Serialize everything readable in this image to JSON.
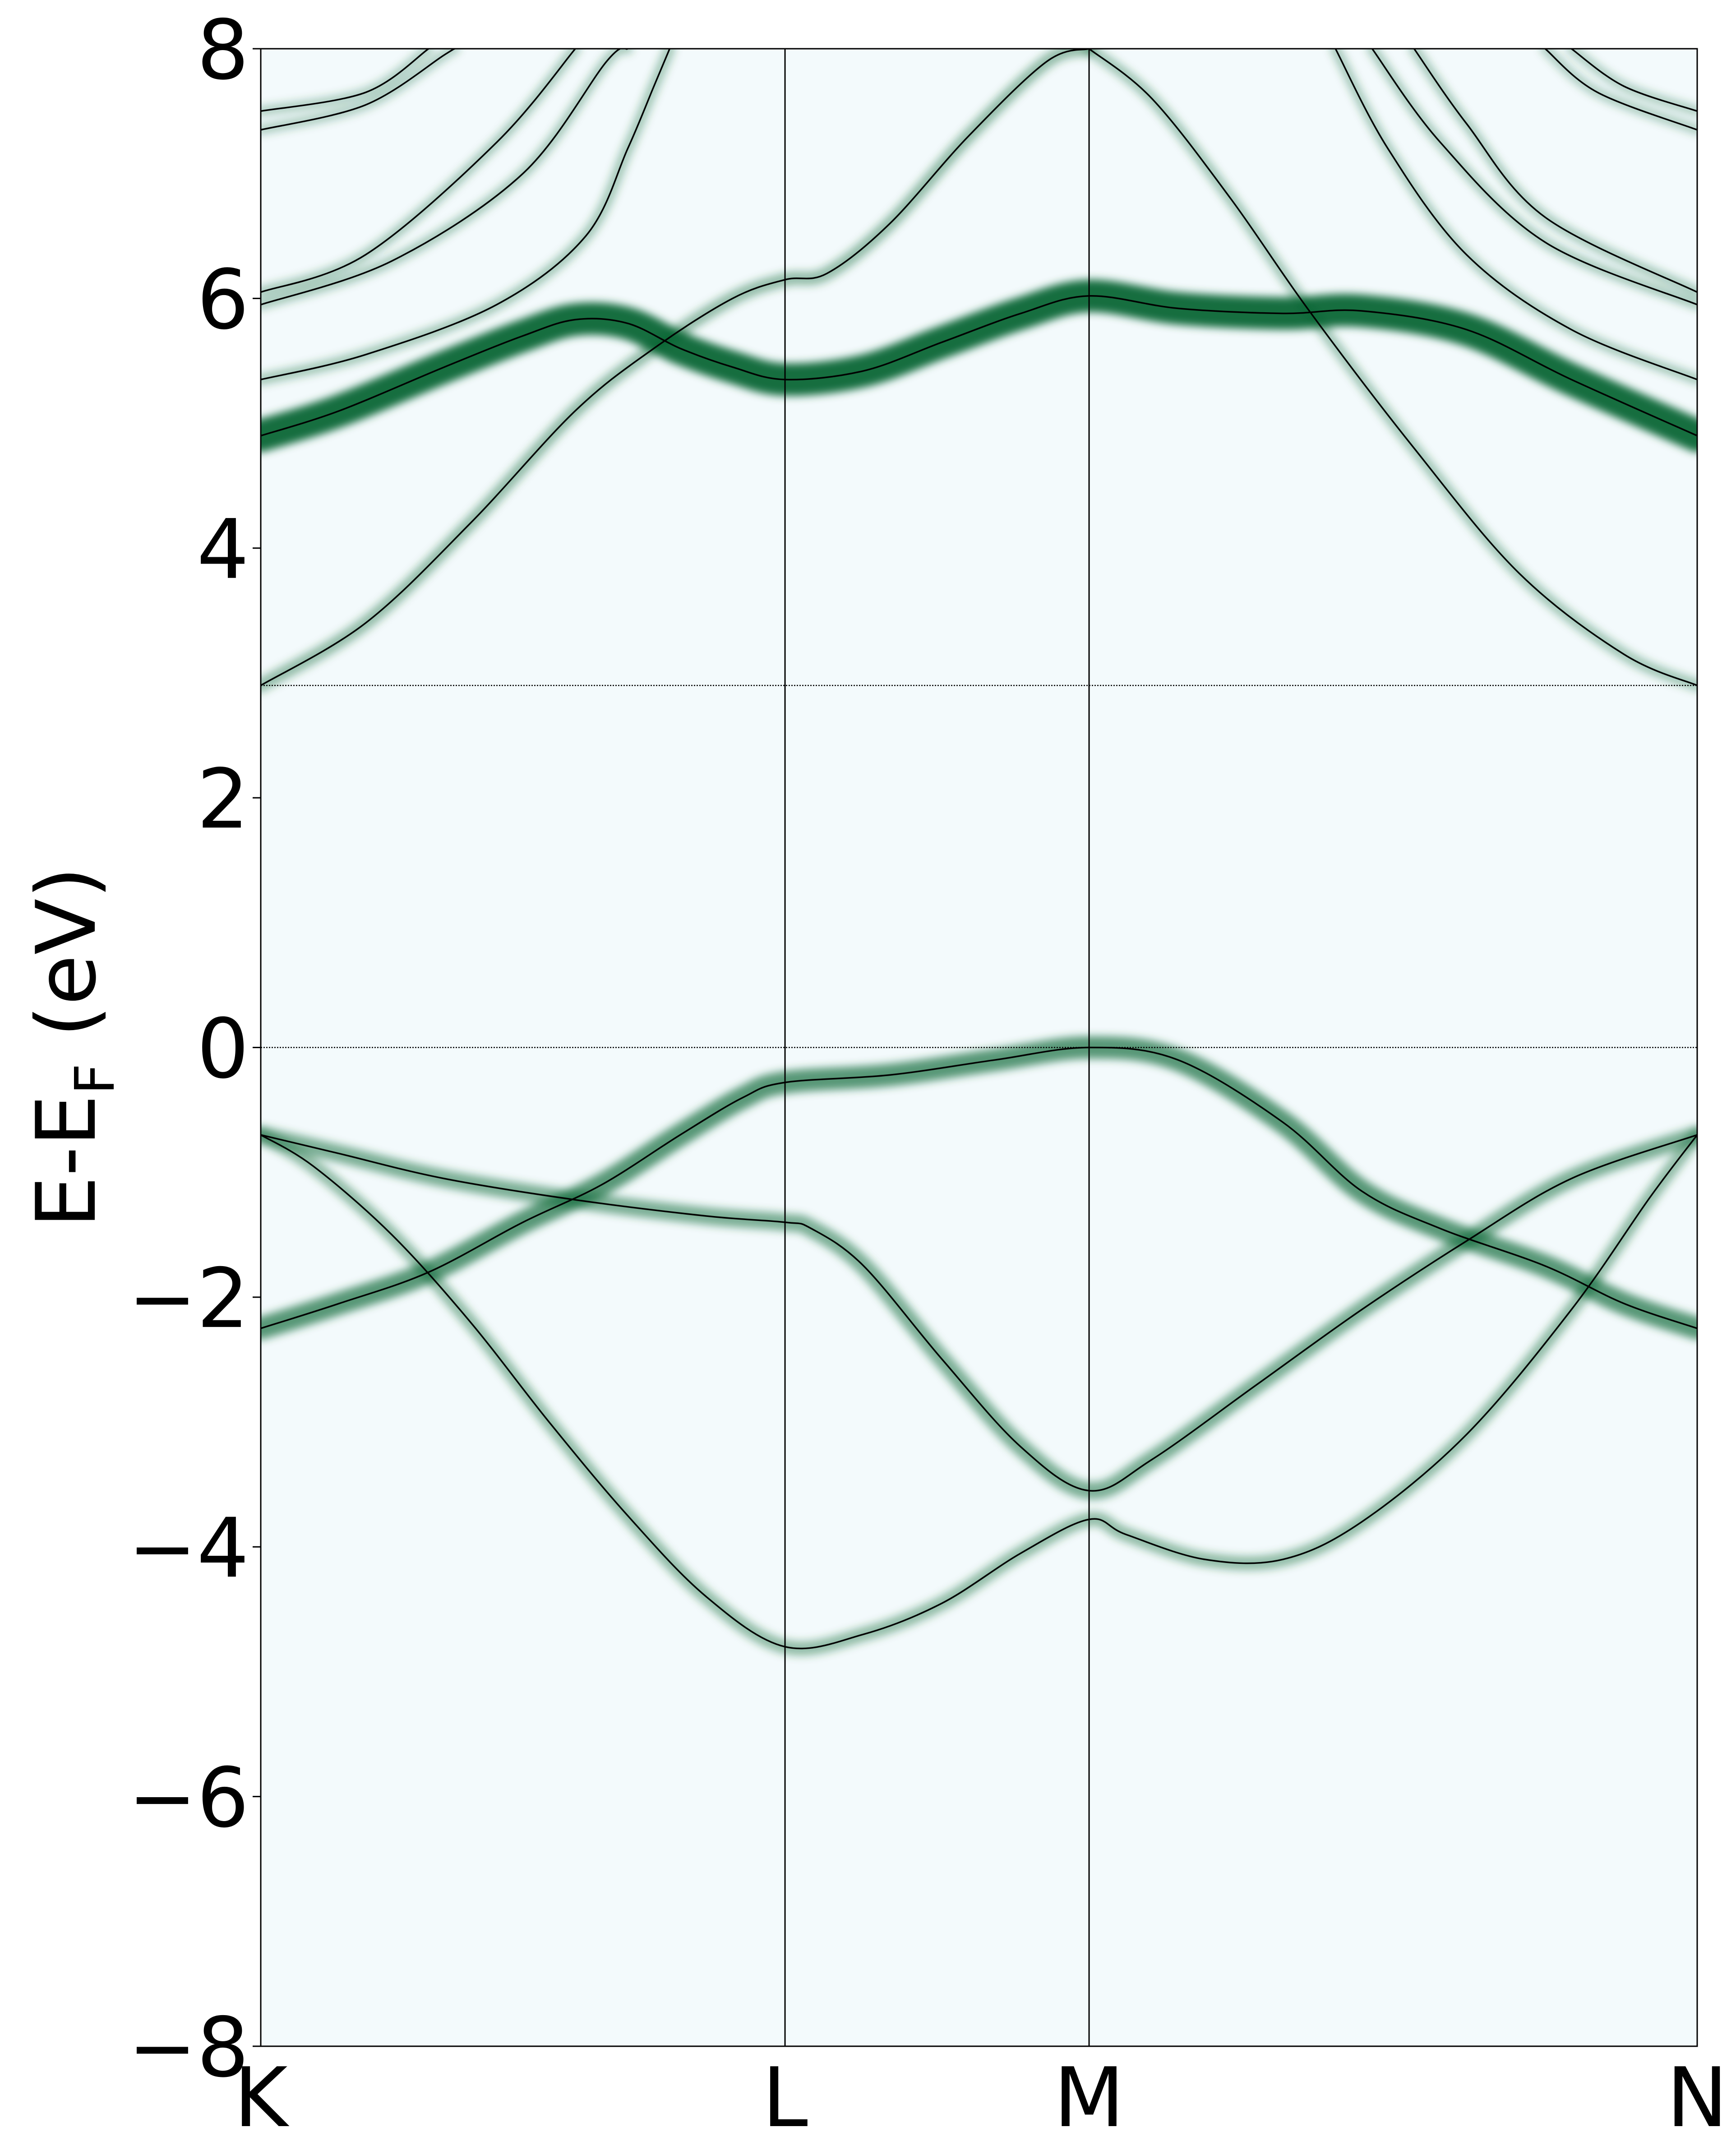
{
  "chart_data": {
    "type": "line",
    "title": "",
    "xlabel": "",
    "ylabel": {
      "main": "E-E",
      "subscript": "F",
      "unit": " (eV)"
    },
    "ylim": [
      -8,
      8
    ],
    "yticks": [
      {
        "value": 8,
        "label": "8"
      },
      {
        "value": 6,
        "label": "6"
      },
      {
        "value": 4,
        "label": "4"
      },
      {
        "value": 2,
        "label": "2"
      },
      {
        "value": 0,
        "label": "0"
      },
      {
        "value": -2,
        "label": "−2"
      },
      {
        "value": -4,
        "label": "−4"
      },
      {
        "value": -6,
        "label": "−6"
      },
      {
        "value": -8,
        "label": "−8"
      }
    ],
    "kpoints": [
      {
        "label": "K",
        "x": 0.0
      },
      {
        "label": "L",
        "x": 1.0
      },
      {
        "label": "M",
        "x": 1.58
      },
      {
        "label": "N",
        "x": 2.74
      }
    ],
    "reference_lines": [
      0.0,
      2.9
    ],
    "grid": false,
    "legend": "none",
    "colors": {
      "bands": "#000000",
      "spectral_weight": "#00602b",
      "background": "#f3fafc"
    },
    "series": [
      {
        "points": [
          [
            0.0,
            -0.7
          ],
          [
            0.15,
            -0.85
          ],
          [
            0.35,
            -1.05
          ],
          [
            0.6,
            -1.22
          ],
          [
            0.85,
            -1.35
          ],
          [
            1.0,
            -1.4
          ],
          [
            1.05,
            -1.45
          ],
          [
            1.15,
            -1.75
          ],
          [
            1.3,
            -2.5
          ],
          [
            1.45,
            -3.2
          ],
          [
            1.58,
            -3.55
          ],
          [
            1.7,
            -3.3
          ],
          [
            1.9,
            -2.7
          ],
          [
            2.1,
            -2.1
          ],
          [
            2.3,
            -1.55
          ],
          [
            2.5,
            -1.05
          ],
          [
            2.74,
            -0.7
          ]
        ]
      },
      {
        "points": [
          [
            0.0,
            -0.7
          ],
          [
            0.1,
            -0.95
          ],
          [
            0.25,
            -1.5
          ],
          [
            0.4,
            -2.2
          ],
          [
            0.55,
            -3.0
          ],
          [
            0.7,
            -3.75
          ],
          [
            0.85,
            -4.4
          ],
          [
            1.0,
            -4.8
          ],
          [
            1.15,
            -4.7
          ],
          [
            1.3,
            -4.45
          ],
          [
            1.45,
            -4.05
          ],
          [
            1.58,
            -3.78
          ],
          [
            1.65,
            -3.9
          ],
          [
            1.8,
            -4.1
          ],
          [
            1.95,
            -4.1
          ],
          [
            2.1,
            -3.8
          ],
          [
            2.3,
            -3.1
          ],
          [
            2.5,
            -2.1
          ],
          [
            2.65,
            -1.2
          ],
          [
            2.74,
            -0.7
          ]
        ]
      },
      {
        "points": [
          [
            0.0,
            -2.25
          ],
          [
            0.15,
            -2.05
          ],
          [
            0.32,
            -1.8
          ],
          [
            0.5,
            -1.4
          ],
          [
            0.65,
            -1.1
          ],
          [
            0.8,
            -0.7
          ],
          [
            0.92,
            -0.4
          ],
          [
            1.0,
            -0.28
          ],
          [
            1.2,
            -0.22
          ],
          [
            1.4,
            -0.1
          ],
          [
            1.58,
            0.0
          ],
          [
            1.75,
            -0.1
          ],
          [
            1.95,
            -0.6
          ],
          [
            2.1,
            -1.15
          ],
          [
            2.25,
            -1.45
          ],
          [
            2.45,
            -1.75
          ],
          [
            2.6,
            -2.05
          ],
          [
            2.74,
            -2.25
          ]
        ]
      },
      {
        "points": [
          [
            0.0,
            4.9
          ],
          [
            0.15,
            5.1
          ],
          [
            0.35,
            5.45
          ],
          [
            0.5,
            5.7
          ],
          [
            0.6,
            5.83
          ],
          [
            0.7,
            5.8
          ],
          [
            0.8,
            5.6
          ],
          [
            0.9,
            5.45
          ],
          [
            1.0,
            5.35
          ],
          [
            1.15,
            5.42
          ],
          [
            1.3,
            5.65
          ],
          [
            1.45,
            5.88
          ],
          [
            1.58,
            6.02
          ],
          [
            1.75,
            5.92
          ],
          [
            1.95,
            5.88
          ],
          [
            2.1,
            5.9
          ],
          [
            2.3,
            5.75
          ],
          [
            2.5,
            5.35
          ],
          [
            2.74,
            4.9
          ]
        ]
      },
      {
        "points": [
          [
            0.0,
            2.9
          ],
          [
            0.2,
            3.4
          ],
          [
            0.4,
            4.2
          ],
          [
            0.6,
            5.1
          ],
          [
            0.75,
            5.6
          ],
          [
            0.9,
            6.0
          ],
          [
            1.0,
            6.15
          ],
          [
            1.08,
            6.2
          ],
          [
            1.2,
            6.6
          ],
          [
            1.35,
            7.3
          ],
          [
            1.5,
            7.9
          ],
          [
            1.58,
            8.0
          ]
        ]
      },
      {
        "points": [
          [
            1.58,
            8.0
          ],
          [
            1.7,
            7.6
          ],
          [
            1.85,
            6.8
          ],
          [
            2.0,
            5.9
          ],
          [
            2.2,
            4.8
          ],
          [
            2.4,
            3.8
          ],
          [
            2.6,
            3.15
          ],
          [
            2.74,
            2.9
          ]
        ]
      },
      {
        "points": [
          [
            0.0,
            5.35
          ],
          [
            0.2,
            5.55
          ],
          [
            0.45,
            5.95
          ],
          [
            0.62,
            6.5
          ],
          [
            0.7,
            7.2
          ],
          [
            0.75,
            7.7
          ],
          [
            0.78,
            8.0
          ]
        ]
      },
      {
        "points": [
          [
            0.0,
            5.95
          ],
          [
            0.25,
            6.3
          ],
          [
            0.5,
            7.0
          ],
          [
            0.66,
            7.9
          ],
          [
            0.7,
            8.0
          ]
        ]
      },
      {
        "points": [
          [
            0.0,
            6.05
          ],
          [
            0.2,
            6.35
          ],
          [
            0.45,
            7.25
          ],
          [
            0.6,
            8.0
          ]
        ]
      },
      {
        "points": [
          [
            0.0,
            7.35
          ],
          [
            0.2,
            7.55
          ],
          [
            0.35,
            7.95
          ],
          [
            0.37,
            8.0
          ]
        ]
      },
      {
        "points": [
          [
            0.0,
            7.5
          ],
          [
            0.2,
            7.65
          ],
          [
            0.32,
            8.0
          ]
        ]
      },
      {
        "points": [
          [
            2.74,
            5.35
          ],
          [
            2.5,
            5.75
          ],
          [
            2.3,
            6.35
          ],
          [
            2.15,
            7.2
          ],
          [
            2.05,
            8.0
          ]
        ]
      },
      {
        "points": [
          [
            2.74,
            5.95
          ],
          [
            2.45,
            6.45
          ],
          [
            2.25,
            7.25
          ],
          [
            2.12,
            8.0
          ]
        ]
      },
      {
        "points": [
          [
            2.74,
            6.05
          ],
          [
            2.45,
            6.65
          ],
          [
            2.3,
            7.4
          ],
          [
            2.2,
            8.0
          ]
        ]
      },
      {
        "points": [
          [
            2.74,
            7.35
          ],
          [
            2.55,
            7.65
          ],
          [
            2.45,
            8.0
          ]
        ]
      },
      {
        "points": [
          [
            2.74,
            7.5
          ],
          [
            2.6,
            7.7
          ],
          [
            2.5,
            8.0
          ]
        ]
      }
    ]
  }
}
